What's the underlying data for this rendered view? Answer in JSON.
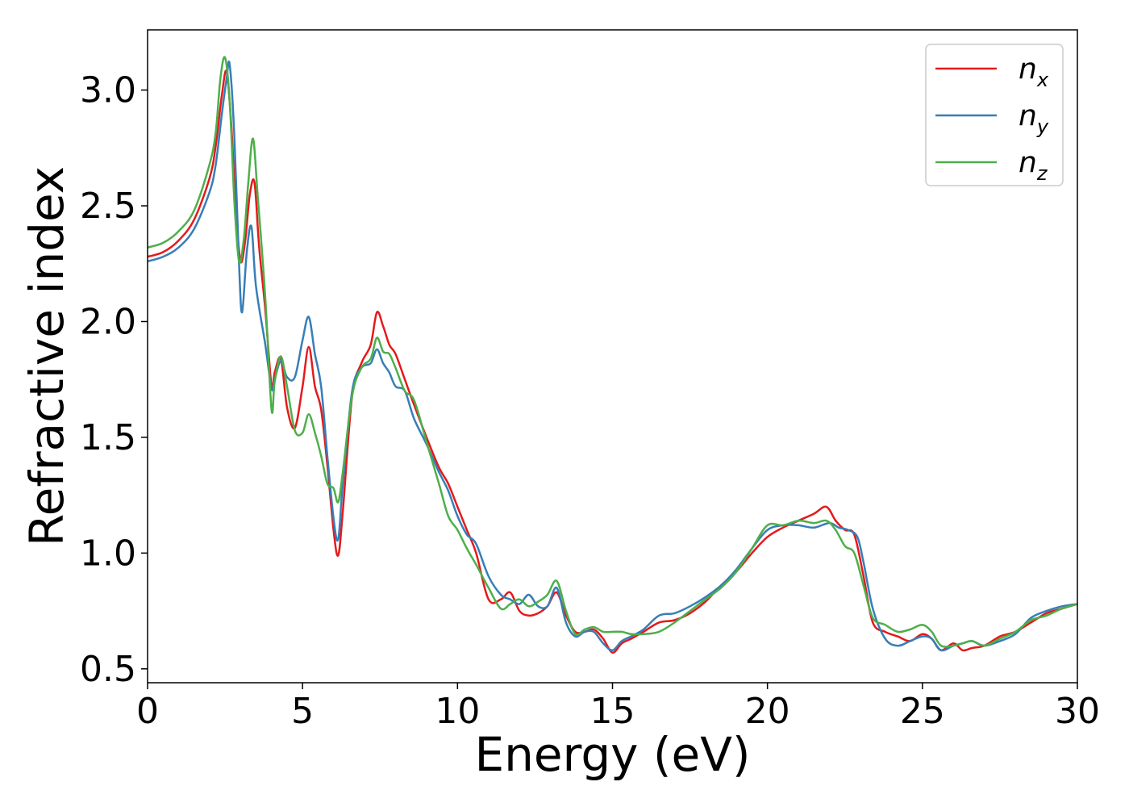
{
  "chart_data": {
    "type": "line",
    "title": "",
    "xlabel": "Energy (eV)",
    "ylabel": "Refractive index",
    "xlim": [
      0,
      30
    ],
    "ylim": [
      0.44,
      3.26
    ],
    "xticks": [
      0,
      5,
      10,
      15,
      20,
      25,
      30
    ],
    "xtick_labels": [
      "0",
      "5",
      "10",
      "15",
      "20",
      "25",
      "30"
    ],
    "yticks": [
      0.5,
      1.0,
      1.5,
      2.0,
      2.5,
      3.0
    ],
    "ytick_labels": [
      "0.5",
      "1.0",
      "1.5",
      "2.0",
      "2.5",
      "3.0"
    ],
    "grid": false,
    "legend_position": "top-right",
    "series": [
      {
        "name": "n_x",
        "label_base": "n",
        "label_sub": "x",
        "color": "#e41a1c",
        "x": [
          0,
          0.5,
          1.0,
          1.5,
          2.0,
          2.2,
          2.4,
          2.55,
          2.7,
          2.85,
          3.0,
          3.15,
          3.3,
          3.45,
          3.6,
          3.8,
          4.0,
          4.1,
          4.3,
          4.5,
          4.75,
          5.0,
          5.2,
          5.4,
          5.6,
          5.8,
          6.0,
          6.15,
          6.3,
          6.6,
          6.9,
          7.2,
          7.4,
          7.6,
          7.8,
          8.0,
          8.3,
          8.6,
          9.0,
          9.4,
          9.7,
          10.0,
          10.3,
          10.6,
          11.0,
          11.4,
          11.7,
          12.0,
          12.3,
          12.6,
          12.9,
          13.2,
          13.5,
          13.8,
          14.1,
          14.4,
          14.7,
          15.0,
          15.3,
          15.6,
          16.0,
          16.5,
          17.0,
          17.5,
          18.0,
          18.5,
          19.0,
          19.5,
          20.0,
          20.5,
          21.0,
          21.5,
          21.9,
          22.2,
          22.5,
          22.8,
          23.1,
          23.4,
          23.8,
          24.2,
          24.6,
          25.0,
          25.3,
          25.6,
          26.0,
          26.3,
          26.6,
          27.0,
          27.5,
          28.0,
          28.5,
          29.0,
          29.5,
          30.0
        ],
        "y": [
          2.28,
          2.3,
          2.35,
          2.44,
          2.62,
          2.76,
          2.98,
          3.08,
          2.85,
          2.48,
          2.26,
          2.35,
          2.55,
          2.6,
          2.32,
          2.05,
          1.72,
          1.78,
          1.84,
          1.63,
          1.54,
          1.72,
          1.89,
          1.72,
          1.62,
          1.38,
          1.1,
          0.99,
          1.18,
          1.68,
          1.82,
          1.9,
          2.04,
          1.98,
          1.9,
          1.86,
          1.75,
          1.64,
          1.5,
          1.37,
          1.3,
          1.2,
          1.1,
          1.0,
          0.8,
          0.8,
          0.83,
          0.75,
          0.73,
          0.74,
          0.77,
          0.83,
          0.73,
          0.66,
          0.66,
          0.67,
          0.63,
          0.57,
          0.61,
          0.63,
          0.66,
          0.7,
          0.71,
          0.74,
          0.79,
          0.86,
          0.92,
          1.0,
          1.07,
          1.11,
          1.14,
          1.17,
          1.2,
          1.14,
          1.1,
          1.08,
          0.9,
          0.7,
          0.66,
          0.64,
          0.62,
          0.65,
          0.63,
          0.58,
          0.61,
          0.58,
          0.59,
          0.6,
          0.64,
          0.66,
          0.7,
          0.74,
          0.76,
          0.78
        ]
      },
      {
        "name": "n_y",
        "label_base": "n",
        "label_sub": "y",
        "color": "#377eb8",
        "x": [
          0,
          0.5,
          1.0,
          1.5,
          2.0,
          2.2,
          2.4,
          2.55,
          2.65,
          2.8,
          2.95,
          3.05,
          3.2,
          3.35,
          3.5,
          3.8,
          4.0,
          4.1,
          4.3,
          4.5,
          4.75,
          5.0,
          5.2,
          5.4,
          5.6,
          5.8,
          6.0,
          6.15,
          6.3,
          6.6,
          6.9,
          7.2,
          7.4,
          7.6,
          7.8,
          8.0,
          8.3,
          8.6,
          9.0,
          9.4,
          9.7,
          10.0,
          10.3,
          10.6,
          11.0,
          11.4,
          11.7,
          12.0,
          12.3,
          12.6,
          12.9,
          13.2,
          13.5,
          13.8,
          14.1,
          14.4,
          14.7,
          15.0,
          15.3,
          15.6,
          16.0,
          16.5,
          17.0,
          17.5,
          18.0,
          18.5,
          19.0,
          19.5,
          20.0,
          20.5,
          21.0,
          21.5,
          22.0,
          22.3,
          22.6,
          22.9,
          23.1,
          23.4,
          23.8,
          24.2,
          24.6,
          25.0,
          25.3,
          25.6,
          26.0,
          26.3,
          26.6,
          27.0,
          27.5,
          28.0,
          28.5,
          29.0,
          29.5,
          30.0
        ],
        "y": [
          2.26,
          2.28,
          2.32,
          2.4,
          2.56,
          2.68,
          2.9,
          3.05,
          3.11,
          2.8,
          2.25,
          2.04,
          2.3,
          2.41,
          2.15,
          1.9,
          1.71,
          1.75,
          1.83,
          1.76,
          1.76,
          1.92,
          2.02,
          1.86,
          1.72,
          1.42,
          1.15,
          1.06,
          1.3,
          1.7,
          1.8,
          1.82,
          1.88,
          1.82,
          1.78,
          1.72,
          1.7,
          1.58,
          1.47,
          1.35,
          1.27,
          1.16,
          1.08,
          1.04,
          0.9,
          0.82,
          0.8,
          0.78,
          0.82,
          0.77,
          0.77,
          0.85,
          0.7,
          0.64,
          0.66,
          0.66,
          0.61,
          0.58,
          0.62,
          0.64,
          0.67,
          0.73,
          0.74,
          0.77,
          0.81,
          0.86,
          0.93,
          1.02,
          1.1,
          1.12,
          1.12,
          1.11,
          1.13,
          1.11,
          1.1,
          1.07,
          0.96,
          0.76,
          0.63,
          0.6,
          0.62,
          0.64,
          0.63,
          0.58,
          0.6,
          0.61,
          0.62,
          0.6,
          0.62,
          0.65,
          0.72,
          0.75,
          0.77,
          0.78
        ]
      },
      {
        "name": "n_z",
        "label_base": "n",
        "label_sub": "z",
        "color": "#4daf4a",
        "x": [
          0,
          0.5,
          1.0,
          1.5,
          2.0,
          2.2,
          2.35,
          2.5,
          2.65,
          2.8,
          2.95,
          3.1,
          3.25,
          3.4,
          3.55,
          3.8,
          4.0,
          4.1,
          4.3,
          4.5,
          4.75,
          5.0,
          5.2,
          5.4,
          5.6,
          5.8,
          6.0,
          6.15,
          6.3,
          6.6,
          6.9,
          7.2,
          7.4,
          7.6,
          7.8,
          8.0,
          8.3,
          8.6,
          9.0,
          9.4,
          9.7,
          10.0,
          10.3,
          10.6,
          11.0,
          11.4,
          11.7,
          12.0,
          12.3,
          12.6,
          12.9,
          13.2,
          13.5,
          13.8,
          14.1,
          14.4,
          14.7,
          15.0,
          15.3,
          15.6,
          16.0,
          16.5,
          17.0,
          17.5,
          18.0,
          18.5,
          19.0,
          19.5,
          20.0,
          20.5,
          21.0,
          21.5,
          21.9,
          22.2,
          22.5,
          22.8,
          23.1,
          23.4,
          23.8,
          24.2,
          24.6,
          25.0,
          25.3,
          25.6,
          26.0,
          26.3,
          26.6,
          27.0,
          27.5,
          28.0,
          28.5,
          29.0,
          29.5,
          30.0
        ],
        "y": [
          2.32,
          2.34,
          2.39,
          2.48,
          2.68,
          2.82,
          3.05,
          3.14,
          2.95,
          2.52,
          2.26,
          2.35,
          2.6,
          2.79,
          2.55,
          2.1,
          1.62,
          1.74,
          1.85,
          1.72,
          1.53,
          1.52,
          1.6,
          1.52,
          1.42,
          1.3,
          1.28,
          1.22,
          1.35,
          1.68,
          1.8,
          1.84,
          1.93,
          1.87,
          1.86,
          1.8,
          1.7,
          1.66,
          1.48,
          1.3,
          1.16,
          1.1,
          1.02,
          0.95,
          0.85,
          0.76,
          0.78,
          0.8,
          0.77,
          0.79,
          0.82,
          0.88,
          0.75,
          0.65,
          0.67,
          0.68,
          0.66,
          0.66,
          0.66,
          0.65,
          0.65,
          0.66,
          0.7,
          0.75,
          0.8,
          0.85,
          0.92,
          1.02,
          1.12,
          1.12,
          1.14,
          1.13,
          1.14,
          1.1,
          1.03,
          1.0,
          0.86,
          0.72,
          0.69,
          0.66,
          0.67,
          0.69,
          0.66,
          0.6,
          0.6,
          0.61,
          0.62,
          0.6,
          0.63,
          0.66,
          0.71,
          0.73,
          0.76,
          0.78
        ]
      }
    ]
  }
}
